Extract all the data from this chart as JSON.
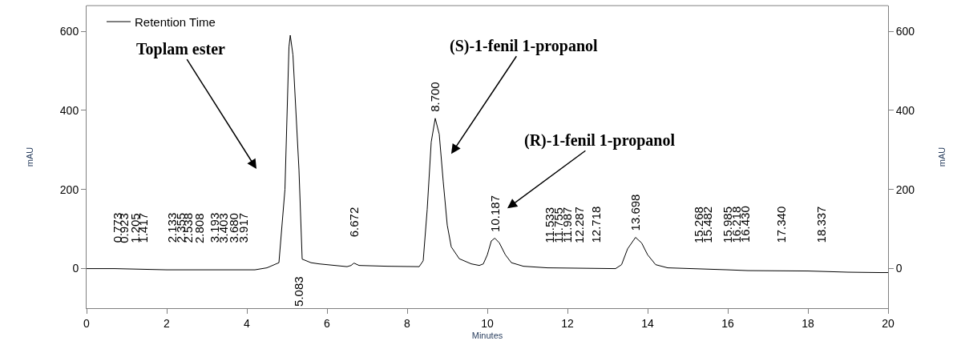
{
  "chart_data": {
    "type": "line",
    "xlabel": "Minutes",
    "ylabel": "mAU",
    "y2label": "mAU",
    "xlim": [
      0,
      20
    ],
    "xticks": [
      0,
      2,
      4,
      6,
      8,
      10,
      12,
      14,
      16,
      18,
      20
    ],
    "ylim": [
      -100,
      665
    ],
    "yticks": [
      0,
      200,
      400,
      600
    ],
    "y2lim": [
      -100,
      665
    ],
    "y2ticks": [
      0,
      200,
      400,
      600
    ],
    "grid": false,
    "legend": "top left",
    "series": [
      {
        "name": "Retention Time",
        "color": "#000000",
        "x": [
          0,
          0.7,
          2,
          4.2,
          4.5,
          4.8,
          4.95,
          5.05,
          5.083,
          5.15,
          5.3,
          5.38,
          5.6,
          5.8,
          6.2,
          6.5,
          6.6,
          6.672,
          6.8,
          7.5,
          8.3,
          8.4,
          8.5,
          8.6,
          8.7,
          8.8,
          8.9,
          9.0,
          9.1,
          9.3,
          9.6,
          9.8,
          9.9,
          10.0,
          10.1,
          10.187,
          10.3,
          10.45,
          10.6,
          10.9,
          11.5,
          13.2,
          13.35,
          13.5,
          13.698,
          13.85,
          14.0,
          14.2,
          14.5,
          16,
          16.5,
          18,
          19,
          19.8,
          20
        ],
        "values": [
          0,
          0,
          -3,
          -3,
          2,
          15,
          200,
          560,
          590,
          540,
          250,
          24,
          15,
          12,
          8,
          5,
          8,
          14,
          8,
          6,
          5,
          20,
          150,
          320,
          380,
          340,
          220,
          110,
          55,
          25,
          12,
          8,
          12,
          35,
          70,
          77,
          65,
          35,
          15,
          6,
          2,
          0,
          10,
          50,
          79,
          65,
          35,
          10,
          2,
          -3,
          -5,
          -6,
          -9,
          -10,
          -10
        ]
      }
    ],
    "annotations": [
      "Toplam ester",
      "(S)-1-fenil 1-propanol",
      "(R)-1-fenil 1-propanol",
      "5.083",
      {
        "text": "0.773",
        "x": 0.773,
        "y": 0
      },
      {
        "text": "0.923",
        "x": 0.923,
        "y": 0
      },
      {
        "text": "1.205",
        "x": 1.205,
        "y": 0
      },
      {
        "text": "1.417",
        "x": 1.417,
        "y": 0
      },
      {
        "text": "2.133",
        "x": 2.133,
        "y": 0
      },
      {
        "text": "2.355",
        "x": 2.355,
        "y": 0
      },
      {
        "text": "2.538",
        "x": 2.538,
        "y": 0
      },
      {
        "text": "2.808",
        "x": 2.808,
        "y": 0
      },
      {
        "text": "3.193",
        "x": 3.193,
        "y": 0
      },
      {
        "text": "3.403",
        "x": 3.403,
        "y": 0
      },
      {
        "text": "3.680",
        "x": 3.68,
        "y": 0
      },
      {
        "text": "3.917",
        "x": 3.917,
        "y": 0
      },
      {
        "text": "6.672",
        "x": 6.672,
        "y": 14
      },
      {
        "text": "8.700",
        "x": 8.7,
        "y": 380
      },
      {
        "text": "10.187",
        "x": 10.187,
        "y": 77
      },
      {
        "text": "11.533",
        "x": 11.533,
        "y": 0
      },
      {
        "text": "11.755",
        "x": 11.755,
        "y": 0
      },
      {
        "text": "11.987",
        "x": 11.987,
        "y": 0
      },
      {
        "text": "12.287",
        "x": 12.287,
        "y": 0
      },
      {
        "text": "12.718",
        "x": 12.718,
        "y": 0
      },
      {
        "text": "13.698",
        "x": 13.698,
        "y": 79
      },
      {
        "text": "15.268",
        "x": 15.268,
        "y": 0
      },
      {
        "text": "15.482",
        "x": 15.482,
        "y": 0
      },
      {
        "text": "15.985",
        "x": 15.985,
        "y": 0
      },
      {
        "text": "16.218",
        "x": 16.218,
        "y": 0
      },
      {
        "text": "16.430",
        "x": 16.43,
        "y": 0
      },
      {
        "text": "17.340",
        "x": 17.34,
        "y": 0
      },
      {
        "text": "18.337",
        "x": 18.337,
        "y": 0
      }
    ]
  }
}
